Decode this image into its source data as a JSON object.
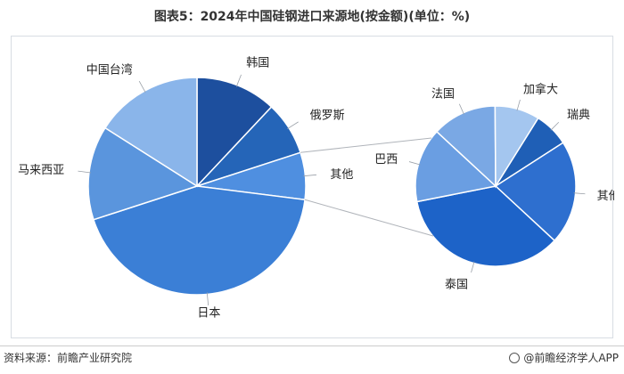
{
  "title": "图表5：2024年中国硅钢进口来源地(按金额)(单位：%)",
  "source": "资料来源：前瞻产业研究院",
  "brand": "@前瞻经济学人APP",
  "chart_data": [
    {
      "type": "pie",
      "name": "主图",
      "slices": [
        {
          "label": "韩国",
          "value": 12
        },
        {
          "label": "俄罗斯",
          "value": 8
        },
        {
          "label": "其他",
          "value": 7
        },
        {
          "label": "日本",
          "value": 43
        },
        {
          "label": "马来西亚",
          "value": 14
        },
        {
          "label": "中国台湾",
          "value": 16
        }
      ],
      "colors": [
        "#1d4f9e",
        "#2565b8",
        "#4f8fe0",
        "#3b7fd6",
        "#5a95dd",
        "#8ab5ea"
      ]
    },
    {
      "type": "pie",
      "name": "其他明细",
      "slices": [
        {
          "label": "瑞典",
          "value": 7
        },
        {
          "label": "其他",
          "value": 21
        },
        {
          "label": "泰国",
          "value": 35
        },
        {
          "label": "巴西",
          "value": 15
        },
        {
          "label": "法国",
          "value": 13
        },
        {
          "label": "加拿大",
          "value": 9
        }
      ],
      "colors": [
        "#1f5fb6",
        "#2e6fcf",
        "#1d63c8",
        "#6a9ee2",
        "#7aa8e4",
        "#a4c6ef"
      ]
    }
  ]
}
